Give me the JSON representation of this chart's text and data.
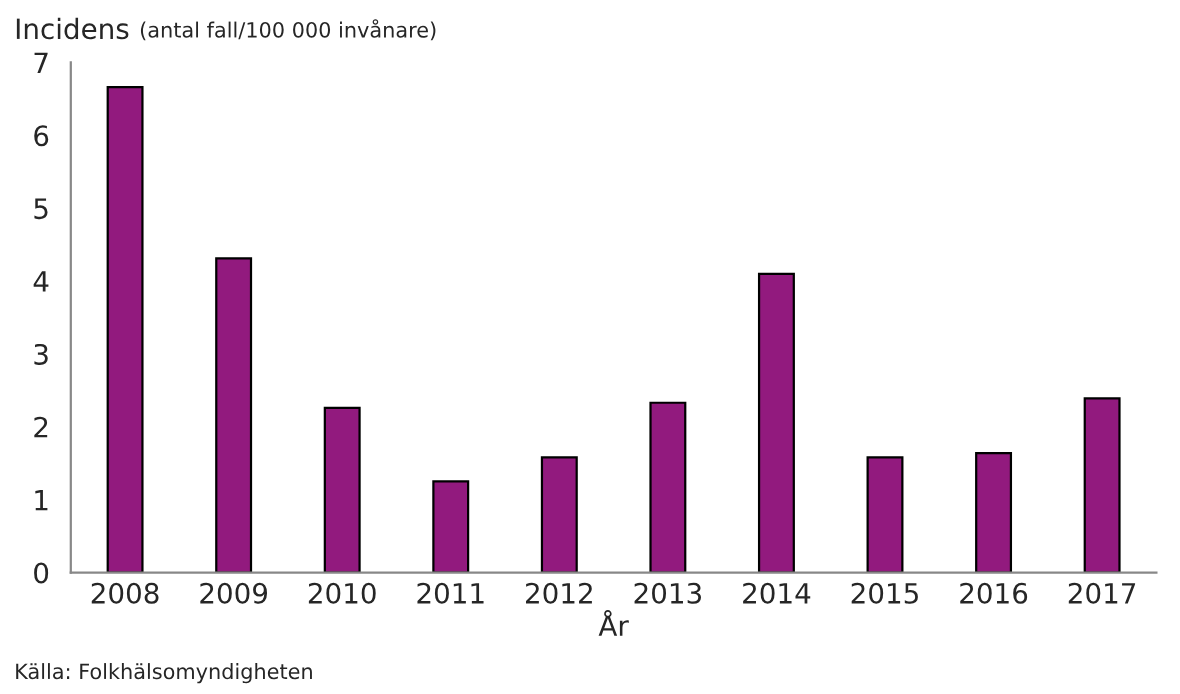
{
  "chart_data": {
    "type": "bar",
    "title": "Incidens",
    "subtitle": "(antal fall/100 000 invånare)",
    "xlabel": "År",
    "annotations": [
      "Källa: Folkhälsomyndigheten"
    ],
    "categories": [
      "2008",
      "2009",
      "2010",
      "2011",
      "2012",
      "2013",
      "2014",
      "2015",
      "2016",
      "2017"
    ],
    "values": [
      6.66,
      4.31,
      2.26,
      1.25,
      1.58,
      2.33,
      4.1,
      1.58,
      1.64,
      2.39
    ],
    "color": "#921a7e",
    "ylim": [
      0,
      7
    ],
    "yticks": [
      0,
      1,
      2,
      3,
      4,
      5,
      6,
      7
    ],
    "grid": false,
    "legend": false
  }
}
